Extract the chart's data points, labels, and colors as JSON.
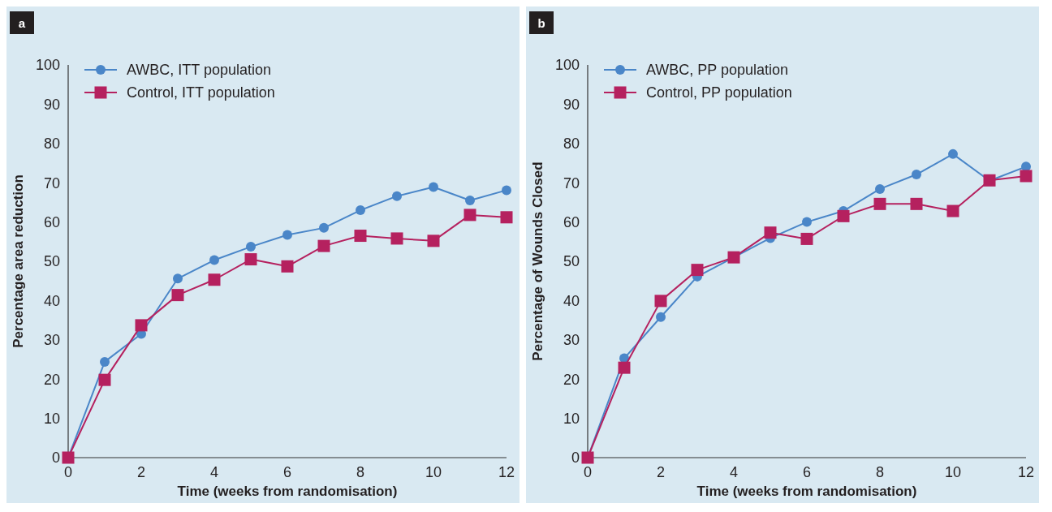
{
  "chart_data": [
    {
      "type": "line",
      "title": "a",
      "xlabel": "Time (weeks from randomisation)",
      "ylabel": "Percentage area reduction",
      "x": [
        0,
        1,
        2,
        3,
        4,
        5,
        6,
        7,
        8,
        9,
        10,
        11,
        12
      ],
      "xlim": [
        0,
        12
      ],
      "xticks": [
        0,
        2,
        4,
        6,
        8,
        10,
        12
      ],
      "ylim": [
        0,
        100
      ],
      "yticks": [
        0,
        10,
        20,
        30,
        40,
        50,
        60,
        70,
        80,
        90,
        100
      ],
      "grid": false,
      "legend": "top left",
      "series": [
        {
          "name": "AWBC, ITT population",
          "color": "#4a86c8",
          "marker": "circle",
          "values": [
            0,
            24.4,
            31.5,
            45.6,
            50.3,
            53.7,
            56.7,
            58.5,
            63,
            66.6,
            68.9,
            65.5,
            68.1
          ]
        },
        {
          "name": "Control, ITT population",
          "color": "#b5215f",
          "marker": "square",
          "values": [
            0,
            19.8,
            33.7,
            41.4,
            45.3,
            50.5,
            48.7,
            53.9,
            56.5,
            55.8,
            55.2,
            61.8,
            61.2
          ]
        }
      ]
    },
    {
      "type": "line",
      "title": "b",
      "xlabel": "Time (weeks from randomisation)",
      "ylabel": "Percentage of Wounds Closed",
      "x": [
        0,
        1,
        2,
        3,
        4,
        5,
        6,
        7,
        8,
        9,
        10,
        11,
        12
      ],
      "xlim": [
        0,
        12
      ],
      "xticks": [
        0,
        2,
        4,
        6,
        8,
        10,
        12
      ],
      "ylim": [
        0,
        100
      ],
      "yticks": [
        0,
        10,
        20,
        30,
        40,
        50,
        60,
        70,
        80,
        90,
        100
      ],
      "grid": false,
      "legend": "top left",
      "series": [
        {
          "name": "AWBC, PP population",
          "color": "#4a86c8",
          "marker": "circle",
          "values": [
            0,
            25.3,
            35.8,
            46.1,
            null,
            55.9,
            60,
            62.8,
            68.4,
            72.1,
            77.3,
            70.5,
            74.1
          ]
        },
        {
          "name": "Control, PP population",
          "color": "#b5215f",
          "marker": "square",
          "values": [
            0,
            22.9,
            39.9,
            47.8,
            51,
            57.3,
            55.7,
            61.5,
            64.6,
            64.6,
            62.8,
            70.6,
            71.7
          ]
        }
      ]
    }
  ]
}
